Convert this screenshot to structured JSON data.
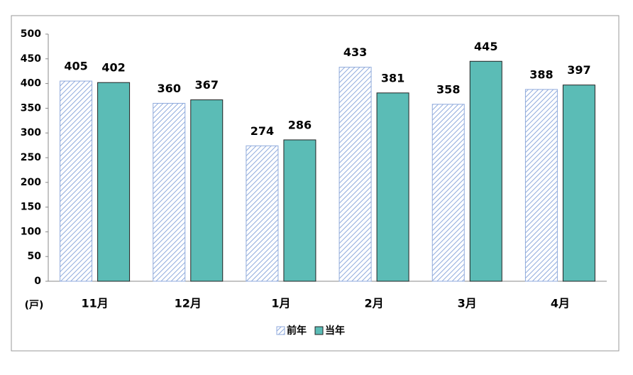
{
  "chart_data": {
    "type": "bar",
    "unit_label": "(戸)",
    "categories": [
      "11月",
      "12月",
      "1月",
      "2月",
      "3月",
      "4月"
    ],
    "series": [
      {
        "name": "前年",
        "color": "#8faadc",
        "hatched": true,
        "values": [
          405,
          360,
          274,
          433,
          358,
          388
        ]
      },
      {
        "name": "当年",
        "color": "#5bbcb6",
        "hatched": false,
        "values": [
          402,
          367,
          286,
          381,
          445,
          397
        ]
      }
    ],
    "ylim": [
      0,
      500
    ],
    "yticks": [
      0,
      50,
      100,
      150,
      200,
      250,
      300,
      350,
      400,
      450,
      500
    ],
    "legend": "bottom",
    "value_labels_shown": true
  }
}
